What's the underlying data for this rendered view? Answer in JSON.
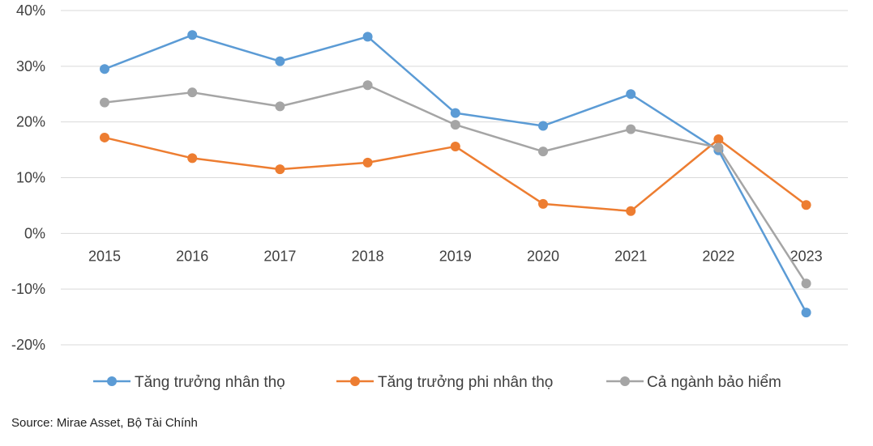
{
  "chart_data": {
    "type": "line",
    "categories": [
      "2015",
      "2016",
      "2017",
      "2018",
      "2019",
      "2020",
      "2021",
      "2022",
      "2023"
    ],
    "y_ticks": [
      40,
      30,
      20,
      10,
      0,
      -10,
      -20
    ],
    "y_tick_labels": [
      "40%",
      "30%",
      "20%",
      "10%",
      "0%",
      "-10%",
      "-20%"
    ],
    "ylim": [
      -20,
      40
    ],
    "grid": true,
    "legend_position": "bottom",
    "series": [
      {
        "name": "Tăng trưởng nhân thọ",
        "color": "#5b9bd5",
        "values": [
          29.5,
          35.6,
          30.9,
          35.3,
          21.6,
          19.3,
          25.0,
          14.9,
          -14.2
        ]
      },
      {
        "name": "Tăng trưởng phi nhân thọ",
        "color": "#ed7d31",
        "values": [
          17.2,
          13.5,
          11.5,
          12.7,
          15.6,
          5.3,
          4.0,
          16.9,
          5.1
        ]
      },
      {
        "name": "Cả ngành bảo hiểm",
        "color": "#a5a5a5",
        "values": [
          23.5,
          25.3,
          22.8,
          26.6,
          19.5,
          14.7,
          18.7,
          15.4,
          -9.0
        ]
      }
    ]
  },
  "source": {
    "label": "Source:",
    "text": "Mirae Asset, Bộ Tài Chính"
  }
}
